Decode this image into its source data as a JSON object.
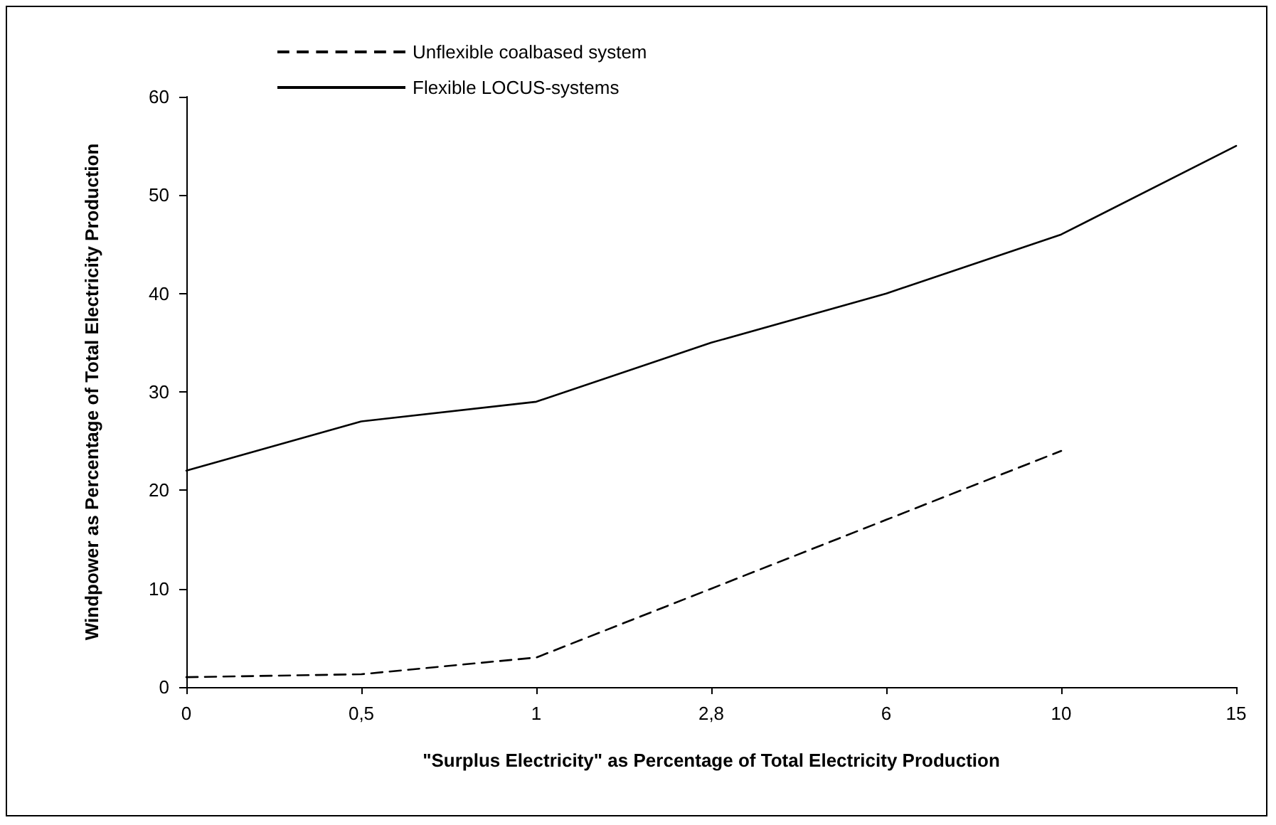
{
  "chart_data": {
    "type": "line",
    "xlabel": "\"Surplus Electricity\" as Percentage of Total Electricity Production",
    "ylabel": "Windpower as Percentage of Total Electricity Production",
    "categories": [
      "0",
      "0,5",
      "1",
      "2,8",
      "6",
      "10",
      "15"
    ],
    "series": [
      {
        "name": "Unflexible coalbased system",
        "color": "#000000",
        "line_style": "dashed",
        "values": [
          1,
          1.3,
          3,
          10,
          17,
          24,
          null
        ]
      },
      {
        "name": "Flexible LOCUS-systems",
        "color": "#000000",
        "line_style": "solid",
        "values": [
          22,
          27,
          29,
          35,
          40,
          46,
          55
        ]
      }
    ],
    "ylim": [
      0,
      60
    ],
    "yticks": [
      0,
      10,
      20,
      30,
      40,
      50,
      60
    ],
    "grid": false,
    "legend": "top left",
    "marker": "none"
  }
}
